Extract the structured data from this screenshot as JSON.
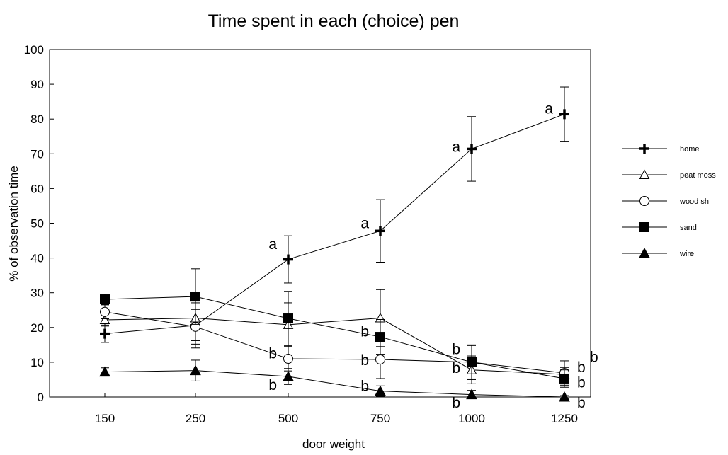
{
  "chart_data": {
    "type": "line",
    "title": "Time spent in each (choice) pen",
    "xlabel": "door weight",
    "ylabel": "% of observation time",
    "categories": [
      "150",
      "250",
      "500",
      "750",
      "1000",
      "1250"
    ],
    "ylim": [
      0,
      100
    ],
    "yticks": [
      0,
      10,
      20,
      30,
      40,
      50,
      60,
      70,
      80,
      90,
      100
    ],
    "grid": false,
    "legend_position": "right",
    "series": [
      {
        "name": "home",
        "marker": "plus",
        "values": [
          18.2,
          20.6,
          39.6,
          47.8,
          71.4,
          81.4
        ],
        "errors": [
          2.5,
          6.5,
          6.8,
          9.0,
          9.3,
          7.8
        ]
      },
      {
        "name": "peat moss",
        "marker": "triangle-open",
        "values": [
          22.2,
          22.7,
          20.8,
          22.7,
          7.8,
          6.5
        ],
        "errors": [
          1.8,
          6.5,
          6.3,
          8.2,
          4.0,
          2.0
        ]
      },
      {
        "name": "wood sh",
        "marker": "circle-open",
        "values": [
          24.5,
          20.2,
          11.0,
          10.8,
          10.0,
          6.9
        ],
        "errors": [
          2.0,
          5.0,
          3.5,
          5.5,
          4.8,
          3.5
        ]
      },
      {
        "name": "sand",
        "marker": "square-filled",
        "values": [
          28.1,
          28.9,
          22.6,
          17.3,
          10.0,
          5.3
        ],
        "errors": [
          1.5,
          8.0,
          7.8,
          5.0,
          5.0,
          2.5
        ]
      },
      {
        "name": "wire",
        "marker": "triangle-filled",
        "values": [
          7.2,
          7.6,
          5.9,
          1.7,
          0.7,
          0.0
        ],
        "errors": [
          1.2,
          3.0,
          2.3,
          1.5,
          1.2,
          0.4
        ]
      }
    ],
    "annotations": [
      {
        "text": "a",
        "x": "500",
        "y": 44
      },
      {
        "text": "a",
        "x": "750",
        "y": 50
      },
      {
        "text": "a",
        "x": "1000",
        "y": 72
      },
      {
        "text": "a",
        "x": "1250",
        "y": 83
      },
      {
        "text": "b",
        "x": "500",
        "y": 12.5
      },
      {
        "text": "b",
        "x": "500",
        "y": 3.5
      },
      {
        "text": "b",
        "x": "750",
        "y": 18.8
      },
      {
        "text": "b",
        "x": "750",
        "y": 10.6
      },
      {
        "text": "b",
        "x": "750",
        "y": 3.2
      },
      {
        "text": "b",
        "x": "1000",
        "y": 13.7
      },
      {
        "text": "b",
        "x": "1000",
        "y": 8.4
      },
      {
        "text": "b",
        "x": "1000",
        "y": -1.6
      },
      {
        "text": "b",
        "x": "1250",
        "y": 11.5
      },
      {
        "text": "b",
        "x": "1250",
        "y": 8.6
      },
      {
        "text": "b",
        "x": "1250",
        "y": 4.2
      },
      {
        "text": "b",
        "x": "1250",
        "y": -1.6
      }
    ]
  }
}
